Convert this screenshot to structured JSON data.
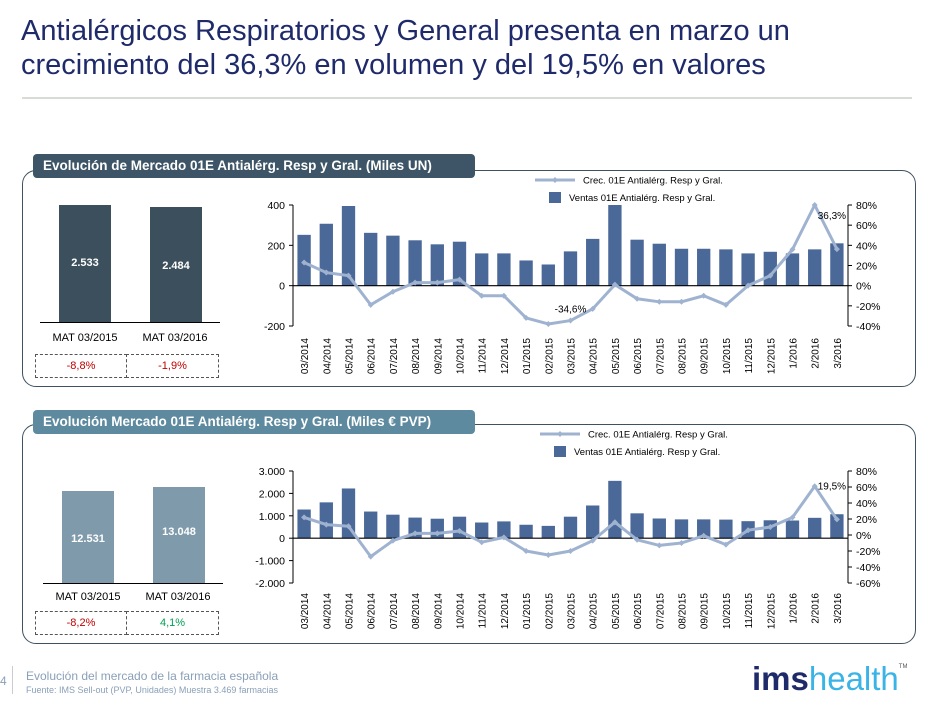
{
  "title": {
    "line1": "Antialérgicos Respiratorios y General presenta en marzo un",
    "line2": "crecimiento del 36,3% en volumen y del 19,5% en valores"
  },
  "panels": [
    {
      "header": "Evolución de Mercado 01E Antialérg. Resp y Gral. (Miles UN)",
      "mat": [
        {
          "label": "MAT 03/2015",
          "value": "2.533",
          "change": "-8,8%",
          "change_sign": "neg"
        },
        {
          "label": "MAT 03/2016",
          "value": "2.484",
          "change": "-1,9%",
          "change_sign": "neg"
        }
      ],
      "mat_bar_color": "#3b4f5c"
    },
    {
      "header": "Evolución Mercado 01E Antialérg. Resp y Gral. (Miles € PVP)",
      "mat": [
        {
          "label": "MAT 03/2015",
          "value": "12.531",
          "change": "-8,2%",
          "change_sign": "neg"
        },
        {
          "label": "MAT 03/2016",
          "value": "13.048",
          "change": "4,1%",
          "change_sign": "pos"
        }
      ],
      "mat_bar_color": "#7f9aab"
    }
  ],
  "chart_data": [
    {
      "type": "bar",
      "title": "Evolución de Mercado 01E Antialérg. Resp y Gral. (Miles UN)",
      "categories": [
        "03/2014",
        "04/2014",
        "05/2014",
        "06/2014",
        "07/2014",
        "08/2014",
        "09/2014",
        "10/2014",
        "11/2014",
        "12/2014",
        "01/2015",
        "02/2015",
        "03/2015",
        "04/2015",
        "05/2015",
        "06/2015",
        "07/2015",
        "08/2015",
        "09/2015",
        "10/2015",
        "11/2015",
        "12/2015",
        "1/2016",
        "2/2016",
        "3/2016"
      ],
      "series": [
        {
          "name": "Ventas 01E Antialérg. Resp y Gral.",
          "type": "bar",
          "axis": "left",
          "color": "#4a6898",
          "values": [
            252,
            307,
            395,
            262,
            248,
            225,
            205,
            218,
            160,
            160,
            125,
            105,
            170,
            232,
            400,
            228,
            208,
            183,
            183,
            180,
            160,
            168,
            160,
            180,
            210
          ]
        },
        {
          "name": "Crec. 01E Antialérg. Resp y Gral.",
          "type": "line",
          "axis": "right",
          "color": "#9fb3d1",
          "values": [
            23,
            13,
            10,
            -19,
            -6,
            3,
            3,
            6,
            -10,
            -10,
            -32,
            -38,
            -34.6,
            -23,
            1,
            -13,
            -16,
            -16,
            -10,
            -19,
            0,
            10,
            36,
            80,
            36.3
          ]
        }
      ],
      "annotations": [
        {
          "category": "03/2015",
          "text": "-34,6%"
        },
        {
          "category": "3/2016",
          "text": "36,3%"
        }
      ],
      "ylim_left": [
        -200,
        400
      ],
      "yticks_left": [
        "-200",
        "0",
        "200",
        "400"
      ],
      "ylim_right": [
        -40,
        80
      ],
      "yticks_right": [
        "-40%",
        "-20%",
        "0%",
        "20%",
        "40%",
        "60%",
        "80%"
      ],
      "legend": "top-center"
    },
    {
      "type": "bar",
      "title": "Evolución Mercado 01E Antialérg. Resp y Gral. (Miles € PVP)",
      "categories": [
        "03/2014",
        "04/2014",
        "05/2014",
        "06/2014",
        "07/2014",
        "08/2014",
        "09/2014",
        "10/2014",
        "11/2014",
        "12/2014",
        "01/2015",
        "02/2015",
        "03/2015",
        "04/2015",
        "05/2015",
        "06/2015",
        "07/2015",
        "08/2015",
        "09/2015",
        "10/2015",
        "11/2015",
        "12/2015",
        "1/2016",
        "2/2016",
        "3/2016"
      ],
      "series": [
        {
          "name": "Ventas 01E Antialérg. Resp y Gral.",
          "type": "bar",
          "axis": "left",
          "color": "#4a6898",
          "values": [
            1280,
            1600,
            2220,
            1190,
            1050,
            920,
            870,
            960,
            700,
            750,
            600,
            550,
            960,
            1460,
            2560,
            1110,
            880,
            840,
            840,
            830,
            760,
            800,
            790,
            910,
            1070
          ]
        },
        {
          "name": "Crec. 01E Antialérg. Resp y Gral.",
          "type": "line",
          "axis": "right",
          "color": "#9fb3d1",
          "values": [
            22,
            13,
            11,
            -27,
            -7,
            2,
            2,
            5,
            -9,
            -3,
            -20,
            -25,
            -20,
            -7,
            16,
            -6,
            -13,
            -10,
            -1,
            -12,
            6,
            10,
            22,
            61,
            19.5
          ]
        }
      ],
      "annotations": [
        {
          "category": "3/2016",
          "text": "19,5%"
        }
      ],
      "ylim_left": [
        -2000,
        3000
      ],
      "yticks_left": [
        "-2.000",
        "-1.000",
        "0",
        "1.000",
        "2.000",
        "3.000"
      ],
      "ylim_right": [
        -60,
        80
      ],
      "yticks_right": [
        "-60%",
        "-40%",
        "-20%",
        "0%",
        "20%",
        "40%",
        "60%",
        "80%"
      ],
      "legend": "top-center"
    }
  ],
  "footer": {
    "page": "4",
    "title": "Evolución del mercado de la farmacia española",
    "source": "Fuente: IMS Sell-out  (PVP, Unidades) Muestra 3.469  farmacias"
  },
  "logo": {
    "part1": "ims",
    "part2": "health",
    "tm": "TM"
  }
}
